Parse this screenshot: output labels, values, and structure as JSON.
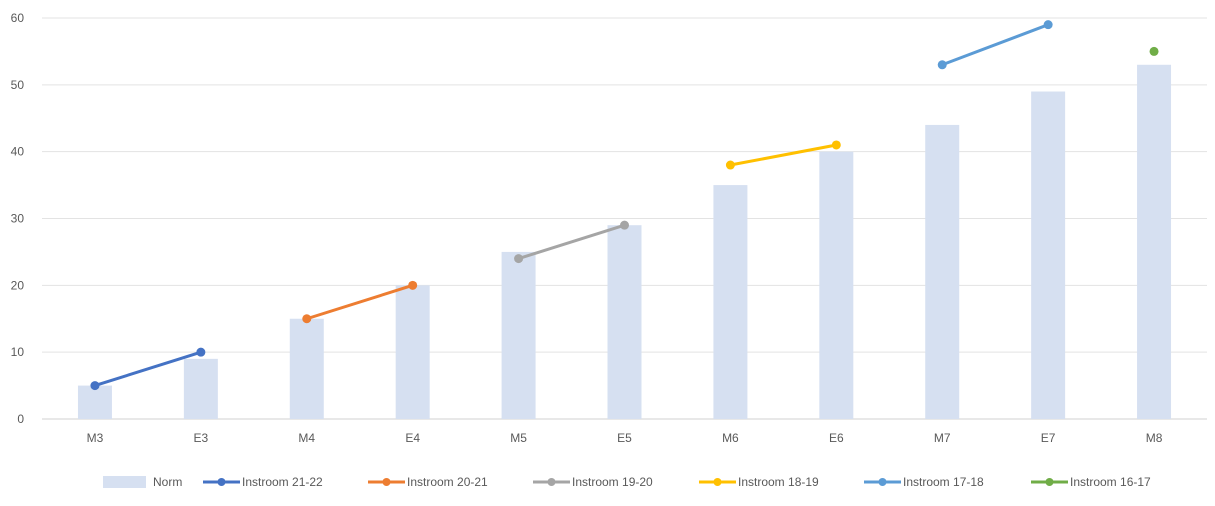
{
  "chart_data": {
    "type": "bar",
    "categories": [
      "M3",
      "E3",
      "M4",
      "E4",
      "M5",
      "E5",
      "M6",
      "E6",
      "M7",
      "E7",
      "M8"
    ],
    "ylim": [
      0,
      60
    ],
    "yticks": [
      0,
      10,
      20,
      30,
      40,
      50,
      60
    ],
    "grid": true,
    "legend_position": "bottom",
    "series": [
      {
        "name": "Norm",
        "kind": "bar",
        "color": "#d6e0f1",
        "values": [
          5,
          9,
          15,
          20,
          25,
          29,
          35,
          40,
          44,
          49,
          53
        ]
      },
      {
        "name": "Instroom 21-22",
        "kind": "line",
        "color": "#4472c4",
        "values": [
          5,
          10,
          null,
          null,
          null,
          null,
          null,
          null,
          null,
          null,
          null
        ]
      },
      {
        "name": "Instroom 20-21",
        "kind": "line",
        "color": "#ed7d31",
        "values": [
          null,
          null,
          15,
          20,
          null,
          null,
          null,
          null,
          null,
          null,
          null
        ]
      },
      {
        "name": "Instroom 19-20",
        "kind": "line",
        "color": "#a5a5a5",
        "values": [
          null,
          null,
          null,
          null,
          24,
          29,
          null,
          null,
          null,
          null,
          null
        ]
      },
      {
        "name": "Instroom 18-19",
        "kind": "line",
        "color": "#ffc000",
        "values": [
          null,
          null,
          null,
          null,
          null,
          null,
          38,
          41,
          null,
          null,
          null
        ]
      },
      {
        "name": "Instroom 17-18",
        "kind": "line",
        "color": "#5b9bd5",
        "values": [
          null,
          null,
          null,
          null,
          null,
          null,
          null,
          null,
          53,
          59,
          null
        ]
      },
      {
        "name": "Instroom 16-17",
        "kind": "line",
        "color": "#70ad47",
        "values": [
          null,
          null,
          null,
          null,
          null,
          null,
          null,
          null,
          null,
          null,
          55
        ]
      }
    ]
  }
}
